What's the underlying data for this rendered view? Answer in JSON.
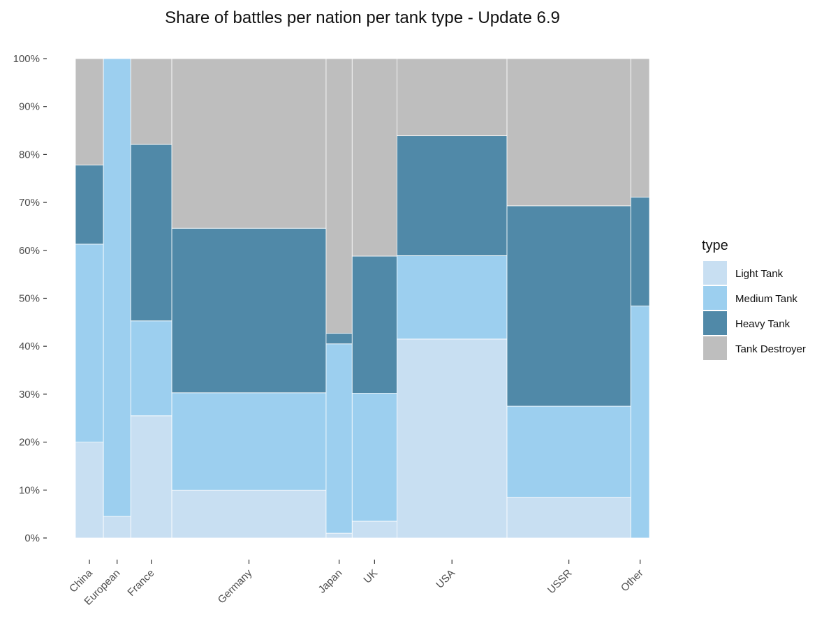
{
  "chart_data": {
    "type": "mosaic",
    "title": "Share of battles per nation per tank type - Update 6.9",
    "xlabel": "",
    "ylabel": "",
    "ylim": [
      0,
      1
    ],
    "y_ticks": [
      "0%",
      "10%",
      "20%",
      "30%",
      "40%",
      "50%",
      "60%",
      "70%",
      "80%",
      "90%",
      "100%"
    ],
    "grid": false,
    "legend": {
      "title": "type",
      "position": "right",
      "entries": [
        "Light Tank",
        "Medium Tank",
        "Heavy Tank",
        "Tank Destroyer"
      ]
    },
    "colors": {
      "Light Tank": "#c8dff2",
      "Medium Tank": "#9ccfef",
      "Heavy Tank": "#5089a8",
      "Tank Destroyer": "#bebebe"
    },
    "categories": [
      "China",
      "European",
      "France",
      "Germany",
      "Japan",
      "UK",
      "USA",
      "USSR",
      "Other"
    ],
    "category_share": [
      0.0484,
      0.0473,
      0.071,
      0.2667,
      0.0451,
      0.0774,
      0.1903,
      0.214,
      0.0323
    ],
    "series": [
      {
        "name": "Light Tank",
        "values": [
          0.2,
          0.045,
          0.255,
          0.1,
          0.01,
          0.035,
          0.415,
          0.085,
          0.0
        ]
      },
      {
        "name": "Medium Tank",
        "values": [
          0.413,
          0.955,
          0.198,
          0.203,
          0.395,
          0.267,
          0.174,
          0.19,
          0.484
        ]
      },
      {
        "name": "Heavy Tank",
        "values": [
          0.165,
          0.0,
          0.368,
          0.343,
          0.022,
          0.286,
          0.25,
          0.418,
          0.227
        ]
      },
      {
        "name": "Tank Destroyer",
        "values": [
          0.222,
          0.0,
          0.179,
          0.354,
          0.573,
          0.412,
          0.161,
          0.307,
          0.289
        ]
      }
    ]
  }
}
